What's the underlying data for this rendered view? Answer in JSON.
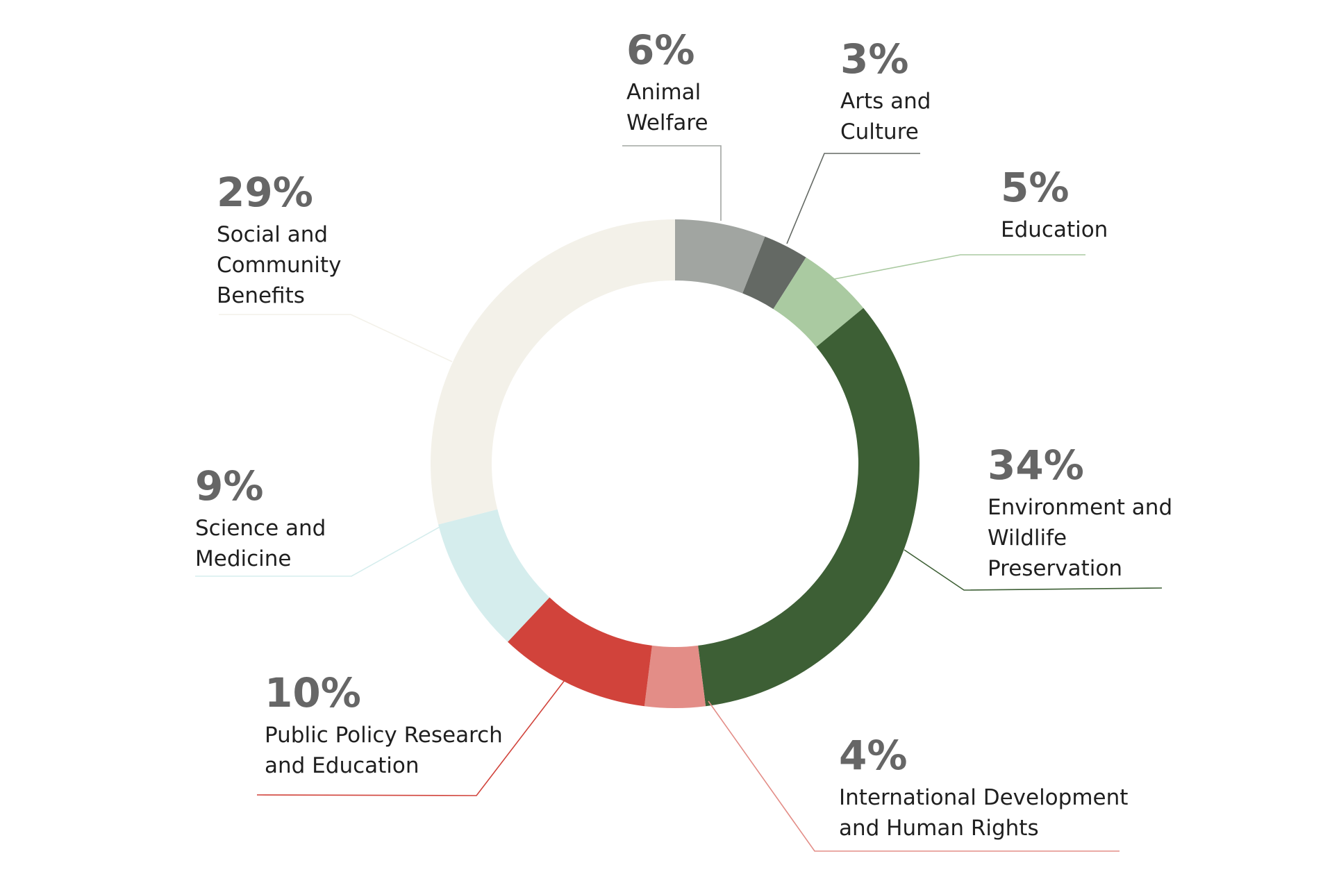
{
  "chart_data": {
    "type": "pie",
    "variant": "donut",
    "title": "",
    "order": "clockwise from top",
    "slices": [
      {
        "label": "Animal Welfare",
        "lines": [
          "Animal",
          "Welfare"
        ],
        "value": 6,
        "value_label": "6%",
        "color": "#a1a5a1"
      },
      {
        "label": "Arts and Culture",
        "lines": [
          "Arts and",
          "Culture"
        ],
        "value": 3,
        "value_label": "3%",
        "color": "#646964"
      },
      {
        "label": "Education",
        "lines": [
          "Education"
        ],
        "value": 5,
        "value_label": "5%",
        "color": "#aacaa1"
      },
      {
        "label": "Environment and Wildlife Preservation",
        "lines": [
          "Environment and",
          "Wildlife",
          "Preservation"
        ],
        "value": 34,
        "value_label": "34%",
        "color": "#3d5f35"
      },
      {
        "label": "International Development and Human Rights",
        "lines": [
          "International Development",
          "and Human Rights"
        ],
        "value": 4,
        "value_label": "4%",
        "color": "#e38d87"
      },
      {
        "label": "Public Policy Research and Education",
        "lines": [
          "Public Policy Research",
          "and Education"
        ],
        "value": 10,
        "value_label": "10%",
        "color": "#d1433b"
      },
      {
        "label": "Science and Medicine",
        "lines": [
          "Science and",
          "Medicine"
        ],
        "value": 9,
        "value_label": "9%",
        "color": "#d5eded"
      },
      {
        "label": "Social and Community Benefits",
        "lines": [
          "Social and",
          "Community",
          "Benefits"
        ],
        "value": 29,
        "value_label": "29%",
        "color": "#f3f1e9"
      }
    ]
  }
}
